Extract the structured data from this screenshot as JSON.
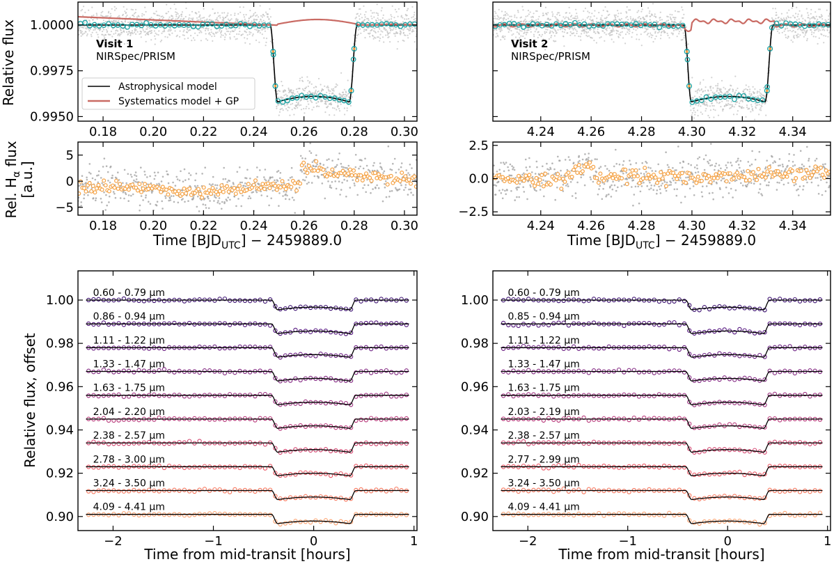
{
  "chart_data": [
    {
      "id": "v1_white",
      "type": "scatter",
      "visit_title": "Visit 1",
      "instrument": "NIRSpec/PRISM",
      "ylabel": "Relative flux",
      "xlim": [
        0.17,
        0.305
      ],
      "ylim": [
        0.99475,
        1.00125
      ],
      "xticks": [
        "0.18",
        "0.20",
        "0.22",
        "0.24",
        "0.26",
        "0.28",
        "0.30"
      ],
      "xtick_values": [
        0.18,
        0.2,
        0.22,
        0.24,
        0.26,
        0.28,
        0.3
      ],
      "yticks": [
        "1.0000",
        "0.9975",
        "0.9950"
      ],
      "ytick_values": [
        1.0,
        0.9975,
        0.995
      ],
      "transit": {
        "t1": 0.2465,
        "t2": 0.2495,
        "t3": 0.278,
        "t4": 0.2812,
        "depth": 0.0042,
        "curvature": 0.0003
      },
      "legend": [
        {
          "label": "Astrophysical model",
          "color": "#000000"
        },
        {
          "label": "Systematics model + GP",
          "color": "#c96a63"
        }
      ]
    },
    {
      "id": "v2_white",
      "type": "scatter",
      "visit_title": "Visit 2",
      "instrument": "NIRSpec/PRISM",
      "xlim": [
        4.221,
        4.355
      ],
      "ylim": [
        0.99475,
        1.00125
      ],
      "xticks": [
        "4.24",
        "4.26",
        "4.28",
        "4.30",
        "4.32",
        "4.34"
      ],
      "xtick_values": [
        4.24,
        4.26,
        4.28,
        4.3,
        4.32,
        4.34
      ],
      "transit": {
        "t1": 4.2968,
        "t2": 4.2998,
        "t3": 4.329,
        "t4": 4.3322,
        "depth": 0.0042,
        "curvature": 0.0003
      }
    },
    {
      "id": "v1_halpha",
      "type": "scatter",
      "ylabel": "Rel. Hα flux [a.u.]",
      "ylabel_line1": "Rel. H",
      "ylabel_sub": "α",
      "ylabel_line1_end": " flux",
      "ylabel_line2": "[a.u.]",
      "xlabel": "Time [BJD_UTC] − 2459889.0",
      "xlabel_main": "Time [BJD",
      "xlabel_sub": "UTC",
      "xlabel_end": "] − 2459889.0",
      "xlim": [
        0.17,
        0.305
      ],
      "ylim": [
        -6.5,
        7.5
      ],
      "xticks": [
        "0.18",
        "0.20",
        "0.22",
        "0.24",
        "0.26",
        "0.28",
        "0.30"
      ],
      "xtick_values": [
        0.18,
        0.2,
        0.22,
        0.24,
        0.26,
        0.28,
        0.3
      ],
      "yticks": [
        "5",
        "0",
        "−5"
      ],
      "ytick_values": [
        5,
        0,
        -5
      ],
      "flare": {
        "start": 0.2585,
        "peak": 3.8,
        "decay": 0.03
      }
    },
    {
      "id": "v2_halpha",
      "type": "scatter",
      "xlabel": "Time [BJD_UTC] − 2459889.0",
      "xlim": [
        4.221,
        4.355
      ],
      "ylim": [
        -2.75,
        2.75
      ],
      "xticks": [
        "4.24",
        "4.26",
        "4.28",
        "4.30",
        "4.32",
        "4.34"
      ],
      "xtick_values": [
        4.24,
        4.26,
        4.28,
        4.3,
        4.32,
        4.34
      ],
      "yticks": [
        "2.5",
        "0.0",
        "−2.5"
      ],
      "ytick_values": [
        2.5,
        0.0,
        -2.5
      ],
      "bump": {
        "center": 4.257,
        "height": 1.0,
        "width": 0.004
      }
    },
    {
      "id": "v1_spectral",
      "type": "scatter",
      "ylabel": "Relative flux, offset",
      "xlabel": "Time from mid-transit [hours]",
      "xlim": [
        -2.35,
        1.03
      ],
      "ylim": [
        0.8935,
        1.0135
      ],
      "xticks": [
        "−2",
        "−1",
        "0",
        "1"
      ],
      "xtick_values": [
        -2,
        -1,
        0,
        1
      ],
      "yticks": [
        "1.00",
        "0.98",
        "0.96",
        "0.94",
        "0.92",
        "0.90"
      ],
      "ytick_values": [
        1.0,
        0.98,
        0.96,
        0.94,
        0.92,
        0.9
      ],
      "band_labels": [
        "0.60 - 0.79 μm",
        "0.86 - 0.94 μm",
        "1.11 - 1.22 μm",
        "1.33 - 1.47 μm",
        "1.63 - 1.75 μm",
        "2.04 - 2.20 μm",
        "2.38 - 2.57 μm",
        "2.78 - 3.00 μm",
        "3.24 - 3.50 μm",
        "4.09 - 4.41 μm"
      ],
      "band_offsets": [
        1.0,
        0.989,
        0.978,
        0.967,
        0.956,
        0.945,
        0.934,
        0.923,
        0.912,
        0.901
      ],
      "band_depths": [
        0.0045,
        0.0045,
        0.0044,
        0.0044,
        0.0044,
        0.0043,
        0.0043,
        0.0042,
        0.0042,
        0.0043
      ],
      "band_colors": [
        "#3b0f70",
        "#51127c",
        "#6a1c81",
        "#822681",
        "#9c2e7f",
        "#b73779",
        "#d3436e",
        "#e95462",
        "#f8765c",
        "#fd9f6c"
      ]
    },
    {
      "id": "v2_spectral",
      "type": "scatter",
      "xlabel": "Time from mid-transit [hours]",
      "xlim": [
        -2.35,
        1.03
      ],
      "ylim": [
        0.8935,
        1.0135
      ],
      "xticks": [
        "−2",
        "−1",
        "0",
        "1"
      ],
      "xtick_values": [
        -2,
        -1,
        0,
        1
      ],
      "yticks": [
        "1.00",
        "0.98",
        "0.96",
        "0.94",
        "0.92",
        "0.90"
      ],
      "ytick_values": [
        1.0,
        0.98,
        0.96,
        0.94,
        0.92,
        0.9
      ],
      "band_labels": [
        "0.60 - 0.79 μm",
        "0.85 - 0.94 μm",
        "1.11 - 1.22 μm",
        "1.33 - 1.47 μm",
        "1.63 - 1.75 μm",
        "2.03 - 2.19 μm",
        "2.38 - 2.57 μm",
        "2.77 - 2.99 μm",
        "3.24 - 3.50 μm",
        "4.09 - 4.41 μm"
      ],
      "band_offsets": [
        1.0,
        0.989,
        0.978,
        0.967,
        0.956,
        0.945,
        0.934,
        0.923,
        0.912,
        0.901
      ],
      "band_depths": [
        0.0045,
        0.0045,
        0.0044,
        0.0044,
        0.0044,
        0.0043,
        0.0043,
        0.0042,
        0.0042,
        0.0043
      ],
      "band_colors": [
        "#3b0f70",
        "#51127c",
        "#6a1c81",
        "#822681",
        "#9c2e7f",
        "#b73779",
        "#d3436e",
        "#e95462",
        "#f8765c",
        "#fd9f6c"
      ]
    }
  ],
  "colors": {
    "raw_points": "#bdbdbd",
    "binned_white": "#1aa3a3",
    "binned_halpha": "#f5a142",
    "model": "#000000",
    "systematics": "#c96a63"
  }
}
